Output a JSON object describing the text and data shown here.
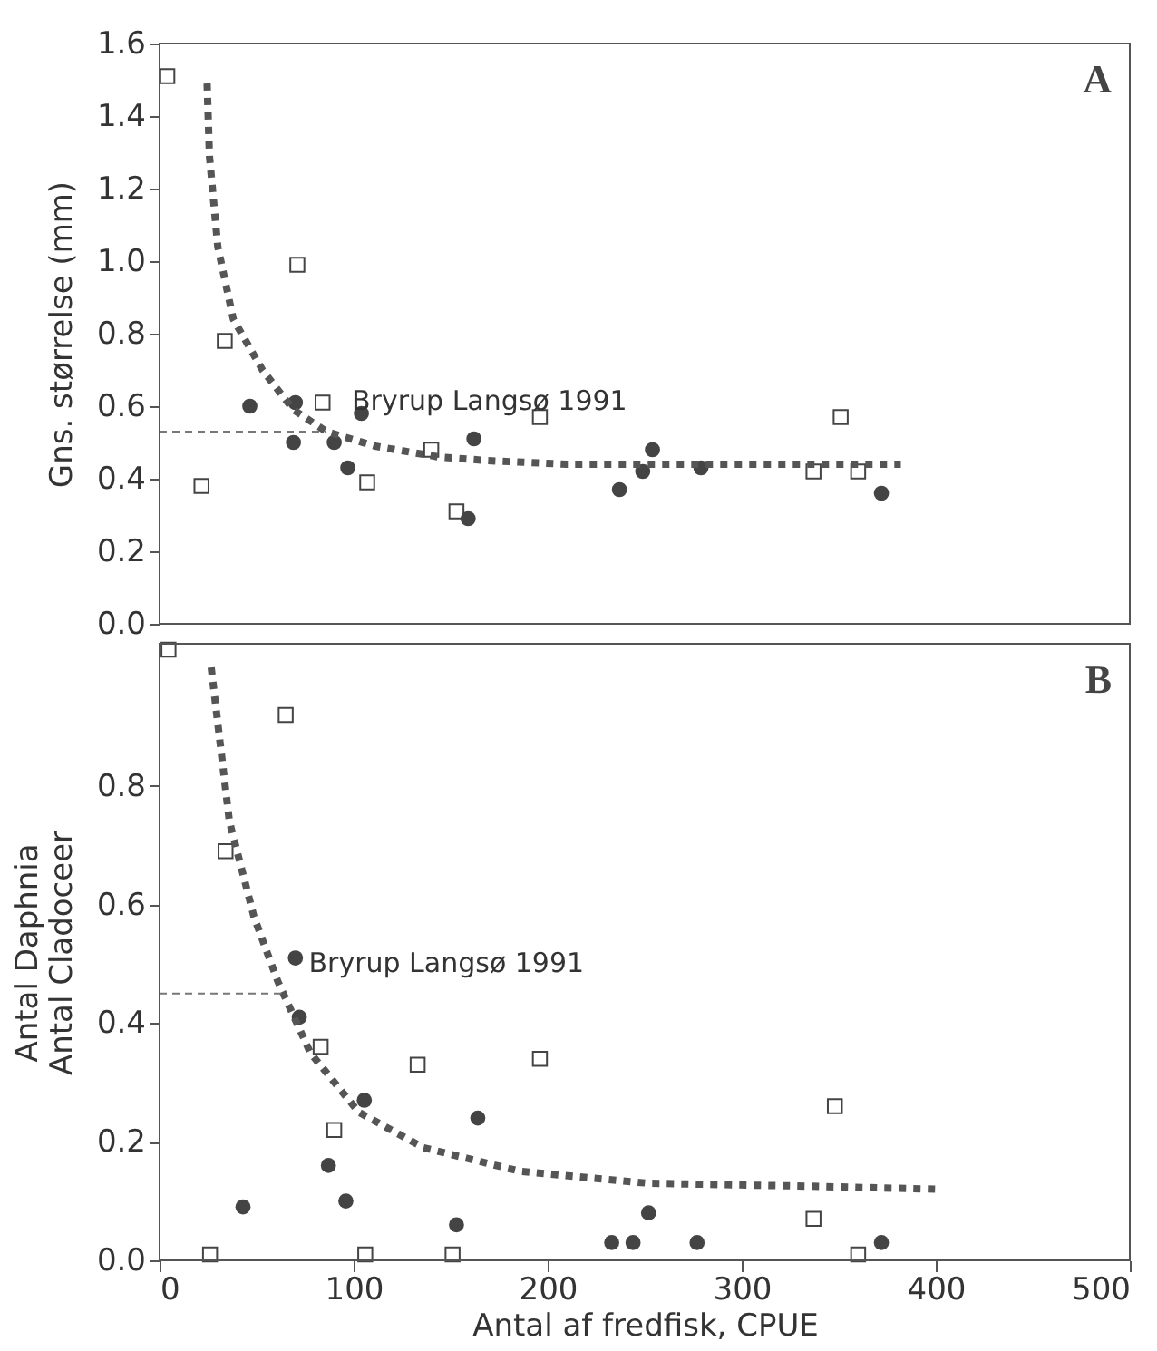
{
  "chart_data": [
    {
      "type": "scatter",
      "ylabel": "Gns. størrelse (mm)",
      "annotations": [
        "A"
      ],
      "xlim": [
        0,
        500
      ],
      "xticks": [
        0,
        100,
        200,
        300,
        400,
        500
      ],
      "ylim": [
        0,
        1.6
      ],
      "yticks": [
        {
          "value": 0,
          "label": "0.0"
        },
        {
          "value": 0.2,
          "label": "0.2"
        },
        {
          "value": 0.4,
          "label": "0.4"
        },
        {
          "value": 0.6,
          "label": "0.6"
        },
        {
          "value": 0.8,
          "label": "0.8"
        },
        {
          "value": 1.0,
          "label": "1.0"
        },
        {
          "value": 1.2,
          "label": "1.2"
        },
        {
          "value": 1.4,
          "label": "1.4"
        },
        {
          "value": 1.6,
          "label": "1.6"
        }
      ],
      "tick_labels": "y",
      "grid": false,
      "ref_lines": [
        {
          "axis": "y",
          "value": 0.53,
          "label": "Bryrup Langsø 1991",
          "color": "#777777",
          "line_style": "dashed"
        }
      ],
      "series": [
        {
          "type": "scatter",
          "marker": "square",
          "color": "#444444",
          "x": [
            4,
            21.6,
            33.6,
            71,
            84,
            107,
            140,
            153,
            196,
            337,
            351,
            360
          ],
          "values": [
            1.51,
            0.38,
            0.78,
            0.99,
            0.61,
            0.39,
            0.48,
            0.31,
            0.57,
            0.42,
            0.57,
            0.42
          ]
        },
        {
          "type": "scatter",
          "marker": "circle",
          "color": "#444444",
          "x": [
            46.5,
            69,
            70,
            90,
            97,
            104,
            159,
            162,
            237,
            249,
            254,
            279,
            372
          ],
          "values": [
            0.6,
            0.5,
            0.61,
            0.5,
            0.43,
            0.58,
            0.29,
            0.51,
            0.37,
            0.42,
            0.48,
            0.43,
            0.36
          ]
        },
        {
          "type": "line",
          "line_style": "dotted",
          "color": "#555555",
          "x": [
            24.5,
            25.7,
            30,
            38,
            53,
            69,
            86,
            111,
            144,
            169,
            210,
            294,
            382
          ],
          "values": [
            1.49,
            1.29,
            1.04,
            0.84,
            0.7,
            0.59,
            0.53,
            0.49,
            0.46,
            0.45,
            0.44,
            0.44,
            0.44
          ]
        }
      ]
    },
    {
      "type": "scatter",
      "xlabel": "Antal af fredfisk, CPUE",
      "ylabel": "Antal Daphnia\nAntal Cladoceer",
      "annotations": [
        "B"
      ],
      "xlim": [
        0,
        500
      ],
      "xticks": [
        0,
        100,
        200,
        300,
        400,
        500
      ],
      "ylim": [
        0,
        1.04
      ],
      "yticks": [
        {
          "value": 0,
          "label": "0.0"
        },
        {
          "value": 0.2,
          "label": "0.2"
        },
        {
          "value": 0.4,
          "label": "0.4"
        },
        {
          "value": 0.6,
          "label": "0.6"
        },
        {
          "value": 0.8,
          "label": "0.8"
        }
      ],
      "grid": false,
      "ref_lines": [
        {
          "axis": "y",
          "value": 0.45,
          "label": "Bryrup Langsø 1991",
          "color": "#777777",
          "line_style": "dashed"
        }
      ],
      "series": [
        {
          "type": "scatter",
          "marker": "square",
          "color": "#444444",
          "x": [
            4.6,
            26,
            34,
            65,
            83,
            90,
            106,
            133,
            151,
            196,
            337,
            348,
            360
          ],
          "values": [
            1.03,
            0.01,
            0.69,
            0.92,
            0.36,
            0.22,
            0.01,
            0.33,
            0.01,
            0.34,
            0.07,
            0.26,
            0.01
          ]
        },
        {
          "type": "scatter",
          "marker": "circle",
          "color": "#444444",
          "x": [
            43,
            70,
            72,
            87,
            96,
            105.5,
            153,
            164,
            233,
            244,
            252,
            277,
            372
          ],
          "values": [
            0.09,
            0.51,
            0.41,
            0.16,
            0.1,
            0.27,
            0.06,
            0.24,
            0.03,
            0.03,
            0.08,
            0.03,
            0.03
          ]
        },
        {
          "type": "line",
          "line_style": "dotted",
          "color": "#555555",
          "x": [
            26.6,
            36,
            48.6,
            61,
            77.7,
            102.6,
            136,
            186,
            252,
            335,
            400
          ],
          "values": [
            1.0,
            0.74,
            0.58,
            0.47,
            0.35,
            0.25,
            0.19,
            0.15,
            0.13,
            0.125,
            0.12
          ]
        }
      ]
    }
  ]
}
